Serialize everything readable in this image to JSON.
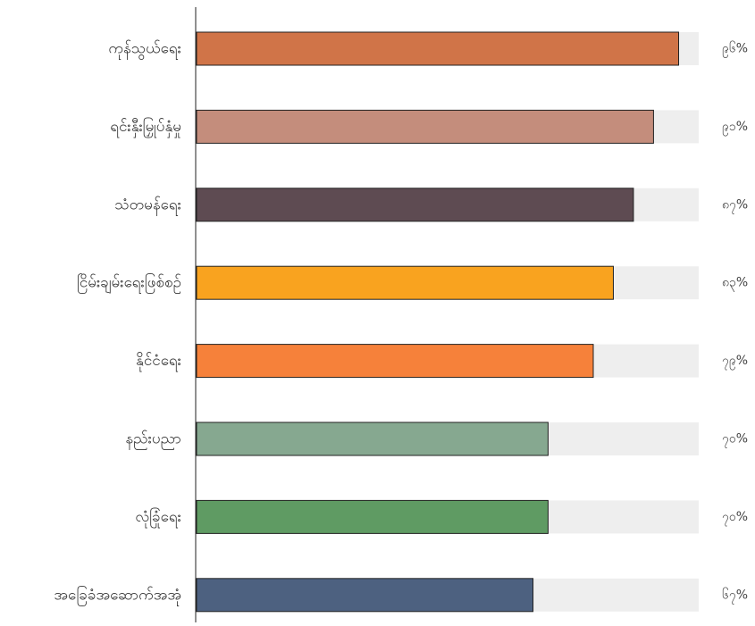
{
  "chart_data": {
    "type": "bar",
    "orientation": "horizontal",
    "title": "",
    "xlabel": "",
    "ylabel": "",
    "xlim": [
      0,
      100
    ],
    "grid": false,
    "legend": "none",
    "background_track_color": "#eeeeee",
    "bars": [
      {
        "category": "ကုန်သွယ်ရေး",
        "value": 96,
        "label": "၉၆%",
        "color": "#d07448"
      },
      {
        "category": "ရင်းနှီးမြှုပ်နှံမှု",
        "value": 91,
        "label": "၉၁%",
        "color": "#c48d7c"
      },
      {
        "category": "သံတမန်ရေး",
        "value": 87,
        "label": "၈၇%",
        "color": "#5e4b52"
      },
      {
        "category": "ငြိမ်းချမ်းရေးဖြစ်စဥ်",
        "value": 83,
        "label": "၈၃%",
        "color": "#f9a31f"
      },
      {
        "category": "နိုင်ငံရေး",
        "value": 79,
        "label": "၇၉%",
        "color": "#f6813a"
      },
      {
        "category": "နည်းပညာ",
        "value": 70,
        "label": "၇၀%",
        "color": "#86a890"
      },
      {
        "category": "လုံခြုံရေး",
        "value": 70,
        "label": "၇၀%",
        "color": "#5f9b63"
      },
      {
        "category": "အခြေခံအဆောက်အအုံ",
        "value": 67,
        "label": "၆၇%",
        "color": "#4d6180"
      }
    ]
  }
}
